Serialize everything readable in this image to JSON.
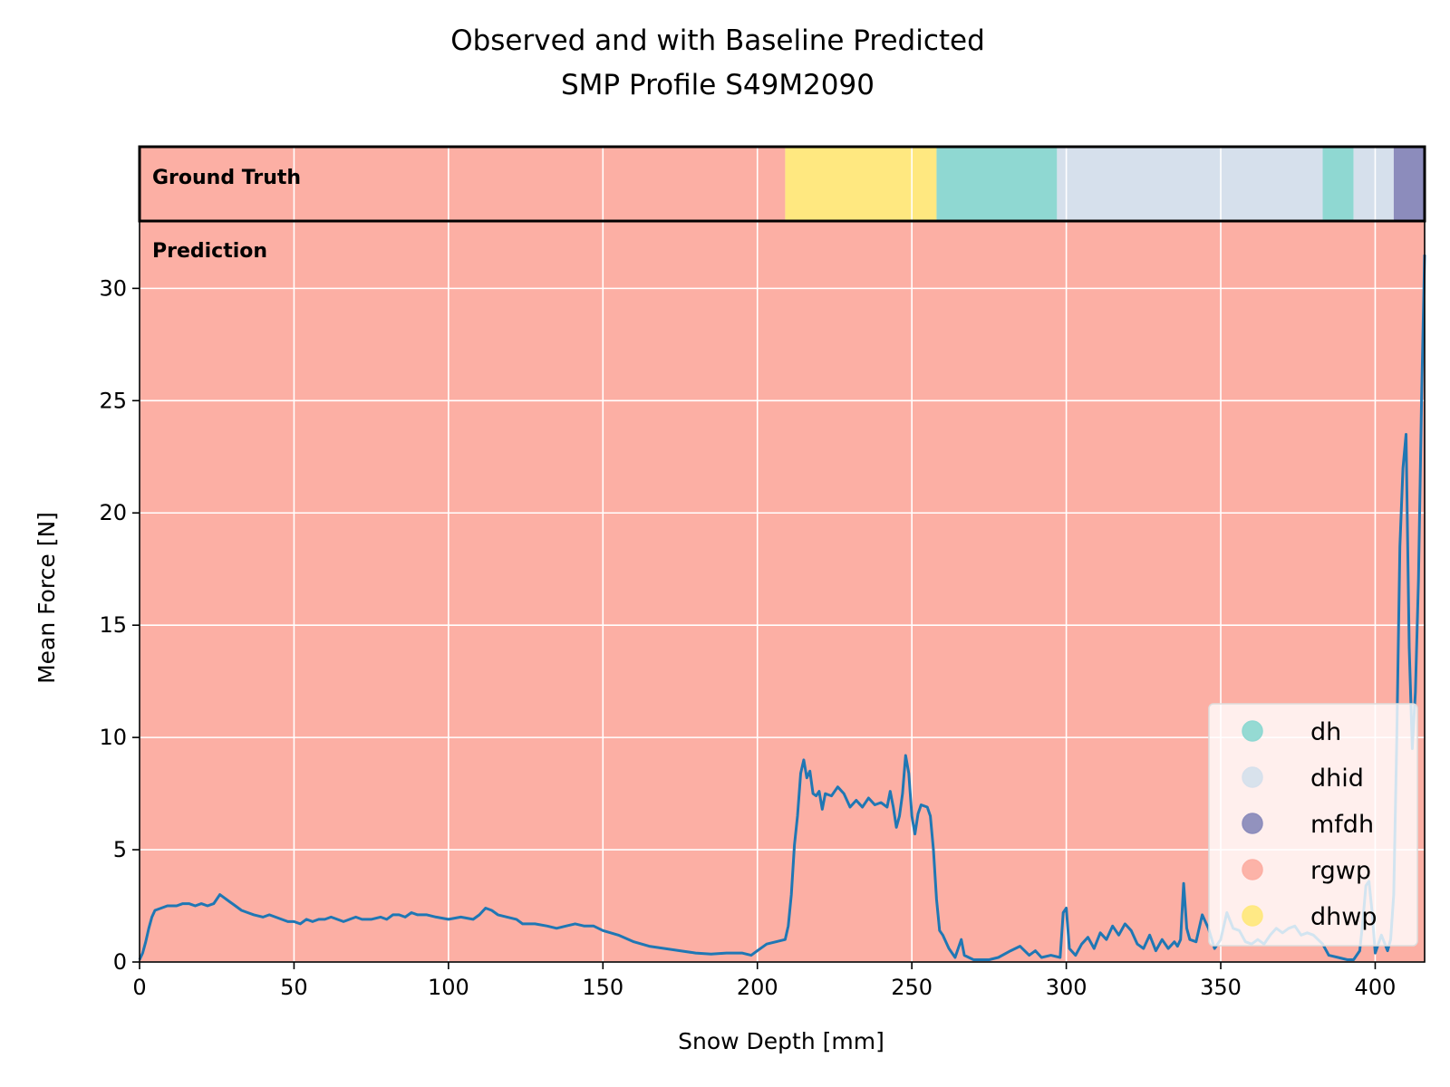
{
  "chart_data": {
    "type": "line",
    "title": [
      "Observed and with Baseline Predicted",
      "SMP Profile S49M2090"
    ],
    "xlabel": "Snow Depth [mm]",
    "ylabel": "Mean Force [N]",
    "xlim": [
      0,
      416
    ],
    "ylim": [
      0,
      33
    ],
    "xticks": [
      0,
      50,
      100,
      150,
      200,
      250,
      300,
      350,
      400
    ],
    "yticks": [
      0,
      5,
      10,
      15,
      20,
      25,
      30
    ],
    "grid": true,
    "legend_position": "bottom-right",
    "band_labels": {
      "ground_truth": "Ground Truth",
      "prediction": "Prediction"
    },
    "classes": [
      {
        "name": "dh",
        "color": "#8fd8d2"
      },
      {
        "name": "dhid",
        "color": "#d6e0ec"
      },
      {
        "name": "mfdh",
        "color": "#8c8cbc"
      },
      {
        "name": "rgwp",
        "color": "#fcafa4"
      },
      {
        "name": "dhwp",
        "color": "#ffe880"
      }
    ],
    "ground_truth_segments": [
      {
        "class": "rgwp",
        "start": 0,
        "end": 209
      },
      {
        "class": "dhwp",
        "start": 209,
        "end": 258
      },
      {
        "class": "dh",
        "start": 258,
        "end": 297
      },
      {
        "class": "dhid",
        "start": 297,
        "end": 383
      },
      {
        "class": "dh",
        "start": 383,
        "end": 393
      },
      {
        "class": "dhid",
        "start": 393,
        "end": 406
      },
      {
        "class": "mfdh",
        "start": 406,
        "end": 416
      }
    ],
    "prediction_segments": [
      {
        "class": "rgwp",
        "start": 0,
        "end": 416
      }
    ],
    "series": [
      {
        "color": "#1f77b4",
        "points": [
          [
            0,
            0.1
          ],
          [
            1,
            0.4
          ],
          [
            2,
            0.9
          ],
          [
            3,
            1.5
          ],
          [
            4,
            2.0
          ],
          [
            5,
            2.3
          ],
          [
            7,
            2.4
          ],
          [
            9,
            2.5
          ],
          [
            12,
            2.5
          ],
          [
            14,
            2.6
          ],
          [
            16,
            2.6
          ],
          [
            18,
            2.5
          ],
          [
            20,
            2.6
          ],
          [
            22,
            2.5
          ],
          [
            24,
            2.6
          ],
          [
            25,
            2.8
          ],
          [
            26,
            3.0
          ],
          [
            27,
            2.9
          ],
          [
            29,
            2.7
          ],
          [
            31,
            2.5
          ],
          [
            33,
            2.3
          ],
          [
            35,
            2.2
          ],
          [
            37,
            2.1
          ],
          [
            40,
            2.0
          ],
          [
            42,
            2.1
          ],
          [
            44,
            2.0
          ],
          [
            46,
            1.9
          ],
          [
            48,
            1.8
          ],
          [
            50,
            1.8
          ],
          [
            52,
            1.7
          ],
          [
            54,
            1.9
          ],
          [
            56,
            1.8
          ],
          [
            58,
            1.9
          ],
          [
            60,
            1.9
          ],
          [
            62,
            2.0
          ],
          [
            64,
            1.9
          ],
          [
            66,
            1.8
          ],
          [
            68,
            1.9
          ],
          [
            70,
            2.0
          ],
          [
            72,
            1.9
          ],
          [
            75,
            1.9
          ],
          [
            78,
            2.0
          ],
          [
            80,
            1.9
          ],
          [
            82,
            2.1
          ],
          [
            84,
            2.1
          ],
          [
            86,
            2.0
          ],
          [
            88,
            2.2
          ],
          [
            90,
            2.1
          ],
          [
            93,
            2.1
          ],
          [
            96,
            2.0
          ],
          [
            100,
            1.9
          ],
          [
            104,
            2.0
          ],
          [
            108,
            1.9
          ],
          [
            110,
            2.1
          ],
          [
            112,
            2.4
          ],
          [
            114,
            2.3
          ],
          [
            116,
            2.1
          ],
          [
            119,
            2.0
          ],
          [
            122,
            1.9
          ],
          [
            124,
            1.7
          ],
          [
            128,
            1.7
          ],
          [
            132,
            1.6
          ],
          [
            135,
            1.5
          ],
          [
            138,
            1.6
          ],
          [
            141,
            1.7
          ],
          [
            144,
            1.6
          ],
          [
            147,
            1.6
          ],
          [
            150,
            1.4
          ],
          [
            155,
            1.2
          ],
          [
            160,
            0.9
          ],
          [
            165,
            0.7
          ],
          [
            170,
            0.6
          ],
          [
            175,
            0.5
          ],
          [
            180,
            0.4
          ],
          [
            185,
            0.35
          ],
          [
            190,
            0.4
          ],
          [
            195,
            0.4
          ],
          [
            198,
            0.3
          ],
          [
            200,
            0.5
          ],
          [
            203,
            0.8
          ],
          [
            206,
            0.9
          ],
          [
            209,
            1.0
          ],
          [
            210,
            1.6
          ],
          [
            211,
            3.0
          ],
          [
            212,
            5.2
          ],
          [
            213,
            6.5
          ],
          [
            214,
            8.4
          ],
          [
            215,
            9.0
          ],
          [
            216,
            8.2
          ],
          [
            217,
            8.5
          ],
          [
            218,
            7.5
          ],
          [
            219,
            7.4
          ],
          [
            220,
            7.6
          ],
          [
            221,
            6.8
          ],
          [
            222,
            7.5
          ],
          [
            224,
            7.4
          ],
          [
            226,
            7.8
          ],
          [
            228,
            7.5
          ],
          [
            230,
            6.9
          ],
          [
            232,
            7.2
          ],
          [
            234,
            6.9
          ],
          [
            236,
            7.3
          ],
          [
            238,
            7.0
          ],
          [
            240,
            7.1
          ],
          [
            242,
            6.9
          ],
          [
            243,
            7.6
          ],
          [
            244,
            6.9
          ],
          [
            245,
            6.0
          ],
          [
            246,
            6.5
          ],
          [
            247,
            7.5
          ],
          [
            248,
            9.2
          ],
          [
            249,
            8.4
          ],
          [
            250,
            6.5
          ],
          [
            251,
            5.7
          ],
          [
            252,
            6.6
          ],
          [
            253,
            7.0
          ],
          [
            255,
            6.9
          ],
          [
            256,
            6.5
          ],
          [
            257,
            5.0
          ],
          [
            258,
            2.8
          ],
          [
            259,
            1.4
          ],
          [
            260,
            1.2
          ],
          [
            262,
            0.6
          ],
          [
            264,
            0.2
          ],
          [
            266,
            1.0
          ],
          [
            267,
            0.3
          ],
          [
            270,
            0.1
          ],
          [
            275,
            0.1
          ],
          [
            278,
            0.2
          ],
          [
            282,
            0.5
          ],
          [
            285,
            0.7
          ],
          [
            288,
            0.3
          ],
          [
            290,
            0.5
          ],
          [
            292,
            0.2
          ],
          [
            295,
            0.3
          ],
          [
            298,
            0.2
          ],
          [
            299,
            2.2
          ],
          [
            300,
            2.4
          ],
          [
            301,
            0.6
          ],
          [
            303,
            0.3
          ],
          [
            305,
            0.8
          ],
          [
            307,
            1.1
          ],
          [
            309,
            0.6
          ],
          [
            311,
            1.3
          ],
          [
            313,
            1.0
          ],
          [
            315,
            1.6
          ],
          [
            317,
            1.2
          ],
          [
            319,
            1.7
          ],
          [
            321,
            1.4
          ],
          [
            323,
            0.8
          ],
          [
            325,
            0.6
          ],
          [
            327,
            1.2
          ],
          [
            329,
            0.5
          ],
          [
            331,
            1.0
          ],
          [
            333,
            0.6
          ],
          [
            335,
            0.9
          ],
          [
            336,
            0.7
          ],
          [
            337,
            1.0
          ],
          [
            338,
            3.5
          ],
          [
            339,
            1.5
          ],
          [
            340,
            1.0
          ],
          [
            342,
            0.9
          ],
          [
            344,
            2.1
          ],
          [
            346,
            1.5
          ],
          [
            348,
            0.6
          ],
          [
            350,
            1.0
          ],
          [
            352,
            2.2
          ],
          [
            354,
            1.5
          ],
          [
            356,
            1.4
          ],
          [
            358,
            0.9
          ],
          [
            360,
            0.8
          ],
          [
            362,
            1.0
          ],
          [
            364,
            0.8
          ],
          [
            366,
            1.2
          ],
          [
            368,
            1.5
          ],
          [
            370,
            1.3
          ],
          [
            372,
            1.5
          ],
          [
            374,
            1.6
          ],
          [
            376,
            1.2
          ],
          [
            378,
            1.3
          ],
          [
            380,
            1.2
          ],
          [
            383,
            0.8
          ],
          [
            385,
            0.3
          ],
          [
            388,
            0.2
          ],
          [
            391,
            0.1
          ],
          [
            393,
            0.1
          ],
          [
            395,
            0.5
          ],
          [
            396,
            1.8
          ],
          [
            397,
            3.4
          ],
          [
            398,
            3.6
          ],
          [
            399,
            2.2
          ],
          [
            400,
            0.4
          ],
          [
            402,
            1.2
          ],
          [
            404,
            0.5
          ],
          [
            405,
            1.0
          ],
          [
            406,
            3.0
          ],
          [
            407,
            10.0
          ],
          [
            408,
            18.5
          ],
          [
            409,
            22.0
          ],
          [
            410,
            23.5
          ],
          [
            411,
            14.0
          ],
          [
            412,
            9.5
          ],
          [
            413,
            12.0
          ],
          [
            414,
            17.0
          ],
          [
            415,
            25.0
          ],
          [
            416,
            31.5
          ]
        ]
      }
    ]
  }
}
